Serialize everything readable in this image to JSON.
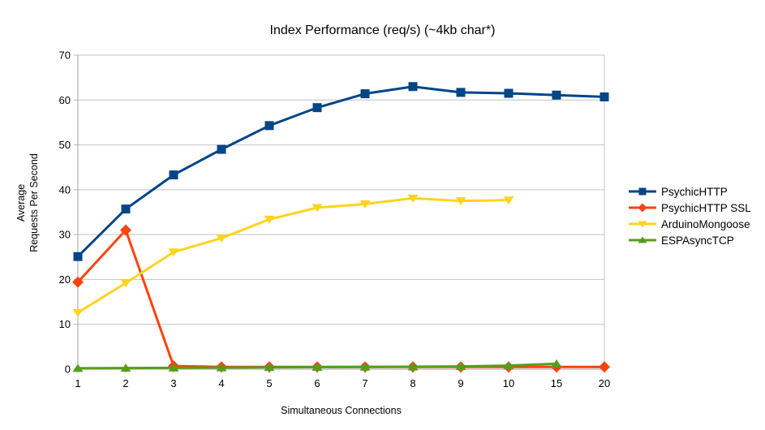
{
  "title": "Index Performance (req/s) (~4kb char*)",
  "chart_data": {
    "type": "line",
    "title": "Index Performance (req/s) (~4kb char*)",
    "xlabel": "Simultaneous Connections",
    "ylabel": "Average Requests Per Second",
    "ylabel_lines": [
      "Average",
      "Requests Per Second"
    ],
    "categories": [
      "1",
      "2",
      "3",
      "4",
      "5",
      "6",
      "7",
      "8",
      "9",
      "10",
      "15",
      "20"
    ],
    "ylim": [
      0,
      70
    ],
    "ytick_step": 10,
    "ytick_labels": [
      "0",
      "10",
      "20",
      "30",
      "40",
      "50",
      "60",
      "70"
    ],
    "grid": "horizontal",
    "legend_position": "right",
    "colors": {
      "axis": "#b3b3b3",
      "grid": "#c2c2c2",
      "text": "#000000",
      "background": "#ffffff"
    },
    "series": [
      {
        "name": "PsychicHTTP",
        "color": "#004586",
        "marker": "square",
        "values": [
          25.1,
          35.7,
          43.3,
          49.0,
          54.3,
          58.3,
          61.4,
          63.0,
          61.7,
          61.5,
          61.1,
          60.7
        ]
      },
      {
        "name": "PsychicHTTP SSL",
        "color": "#ff420e",
        "marker": "diamond",
        "values": [
          19.4,
          31.0,
          0.7,
          0.5,
          0.5,
          0.5,
          0.5,
          0.5,
          0.5,
          0.5,
          0.5,
          0.5
        ]
      },
      {
        "name": "ArduinoMongoose",
        "color": "#ffd320",
        "marker": "triangle-down",
        "values": [
          12.6,
          19.2,
          26.1,
          29.2,
          33.4,
          36.0,
          36.8,
          38.1,
          37.5,
          37.7,
          null,
          null
        ]
      },
      {
        "name": "ESPAsyncTCP",
        "color": "#579d1c",
        "marker": "triangle-up",
        "values": [
          0.2,
          0.25,
          0.3,
          0.35,
          0.4,
          0.45,
          0.5,
          0.55,
          0.6,
          0.8,
          1.2,
          null
        ]
      }
    ]
  }
}
